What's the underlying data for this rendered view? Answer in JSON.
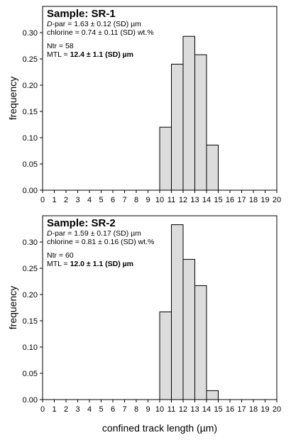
{
  "chart_data": [
    {
      "type": "bar",
      "sample_label": "Sample: SR-1",
      "dpar_prefix": "D",
      "dpar_rest": "-par = 1.63 ± 0.12 (SD) µm",
      "chlorine": "chlorine = 0.74 ± 0.11 (SD) wt.%",
      "ntr": "Ntr = 58",
      "mtl_prefix": "MTL = ",
      "mtl_value": "12.4 ± 1.1 (SD) µm",
      "ylabel": "frequency",
      "xlim": [
        0,
        20
      ],
      "ylim": [
        0,
        0.35
      ],
      "x_ticks": [
        0,
        1,
        2,
        3,
        4,
        5,
        6,
        7,
        8,
        9,
        10,
        11,
        12,
        13,
        14,
        15,
        16,
        17,
        18,
        19,
        20
      ],
      "y_ticks": [
        0.0,
        0.05,
        0.1,
        0.15,
        0.2,
        0.25,
        0.3
      ],
      "y_tick_labels": [
        "0.00",
        "0.05",
        "0.10",
        "0.15",
        "0.20",
        "0.25",
        "0.30"
      ],
      "bins": [
        [
          10,
          11
        ],
        [
          11,
          12
        ],
        [
          12,
          13
        ],
        [
          13,
          14
        ],
        [
          14,
          15
        ]
      ],
      "values": [
        0.12,
        0.24,
        0.293,
        0.258,
        0.086
      ]
    },
    {
      "type": "bar",
      "sample_label": "Sample: SR-2",
      "dpar_prefix": "D",
      "dpar_rest": "-par = 1.59 ± 0.17 (SD) µm",
      "chlorine": "chlorine = 0.81 ± 0.16 (SD) wt.%",
      "ntr": "Ntr = 60",
      "mtl_prefix": "MTL = ",
      "mtl_value": "12.0 ± 1.1 (SD) µm",
      "ylabel": "frequency",
      "xlabel": "confined track length  (µm)",
      "xlim": [
        0,
        20
      ],
      "ylim": [
        0,
        0.35
      ],
      "x_ticks": [
        0,
        1,
        2,
        3,
        4,
        5,
        6,
        7,
        8,
        9,
        10,
        11,
        12,
        13,
        14,
        15,
        16,
        17,
        18,
        19,
        20
      ],
      "y_ticks": [
        0.0,
        0.05,
        0.1,
        0.15,
        0.2,
        0.25,
        0.3
      ],
      "y_tick_labels": [
        "0.00",
        "0.05",
        "0.10",
        "0.15",
        "0.20",
        "0.25",
        "0.30"
      ],
      "bins": [
        [
          10,
          11
        ],
        [
          11,
          12
        ],
        [
          12,
          13
        ],
        [
          13,
          14
        ],
        [
          14,
          15
        ]
      ],
      "values": [
        0.167,
        0.333,
        0.267,
        0.217,
        0.017
      ]
    }
  ],
  "colors": {
    "bar_fill": "#dcdcdc",
    "bar_stroke": "#000000",
    "axis": "#000000"
  }
}
